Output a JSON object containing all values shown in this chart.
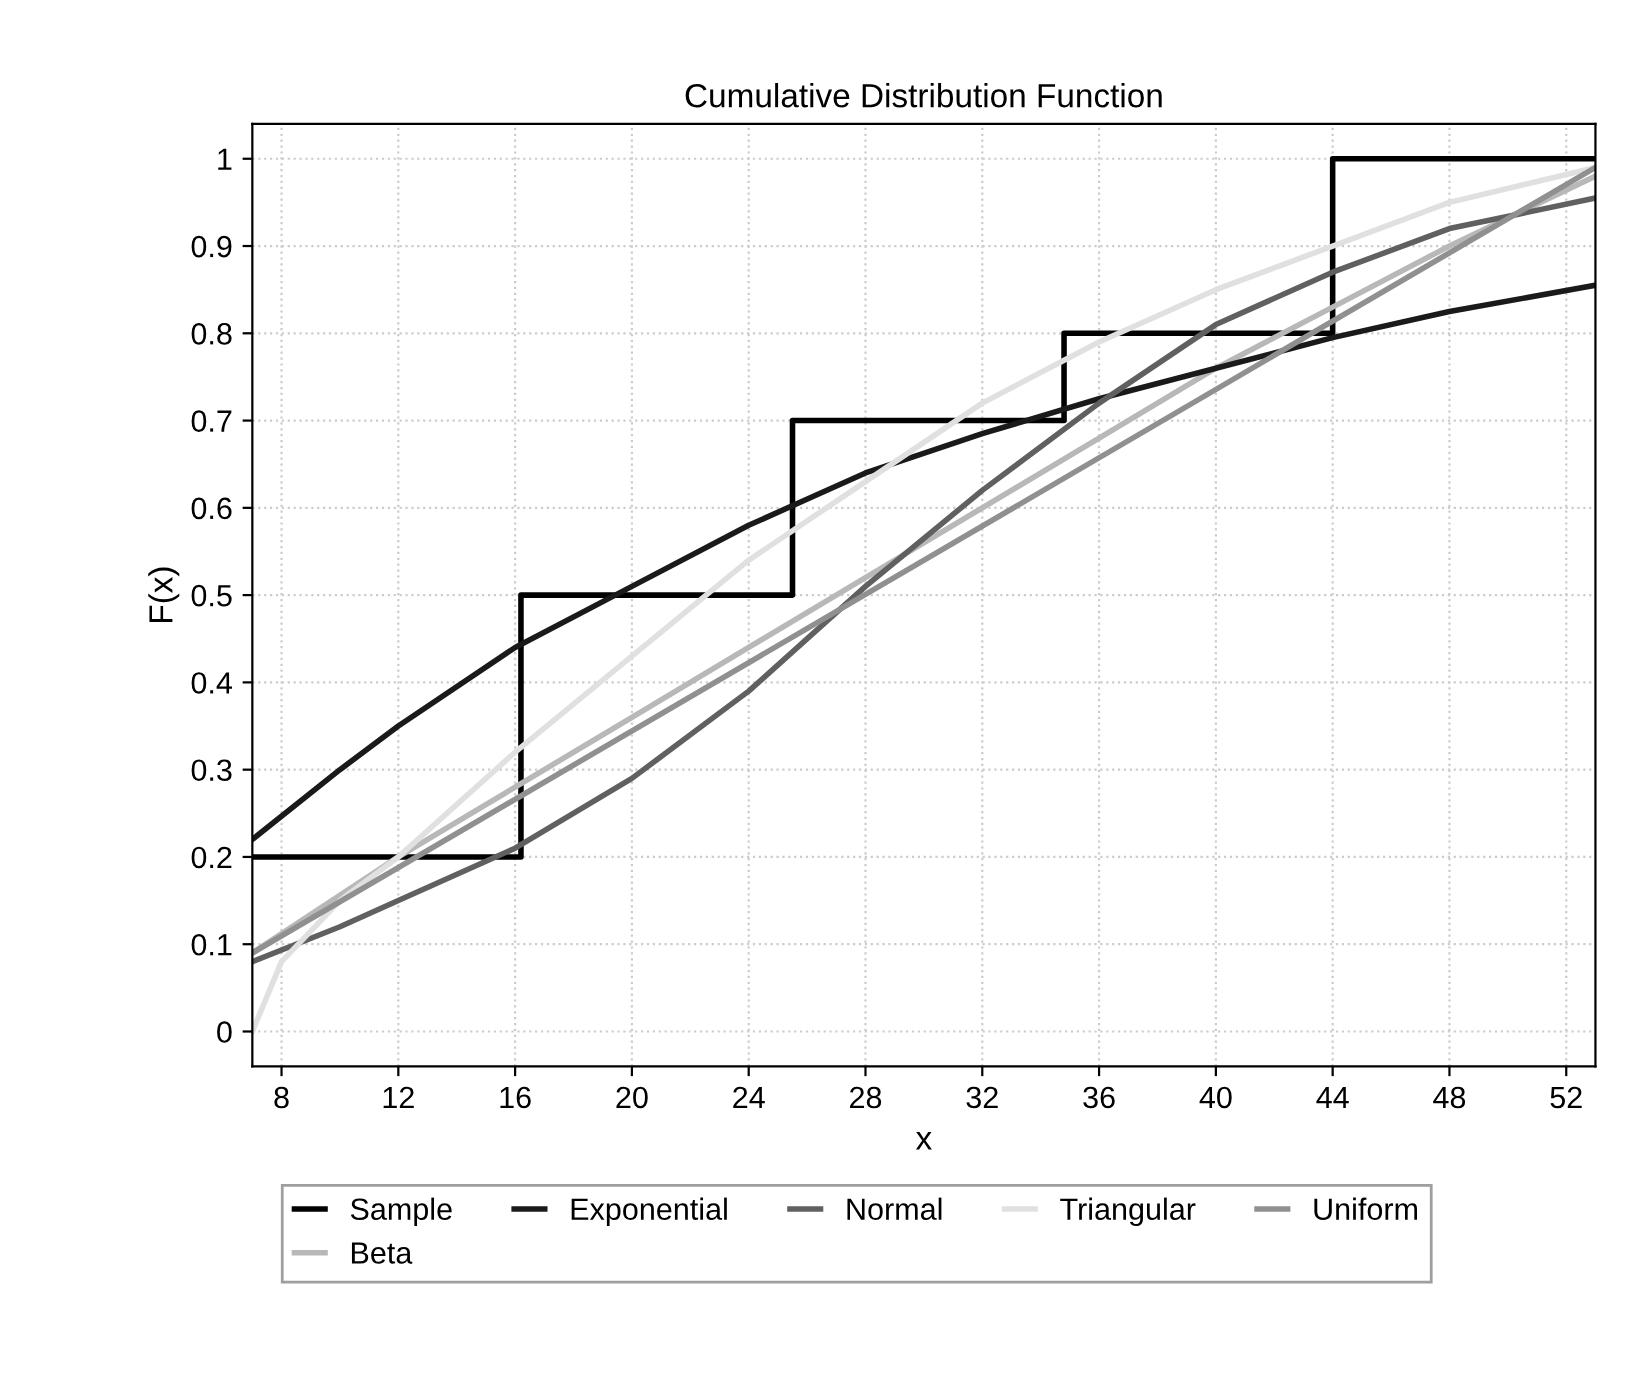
{
  "chart_data": {
    "type": "line",
    "title": "Cumulative Distribution Function",
    "xlabel": "x",
    "ylabel": "F(x)",
    "xlim": [
      7,
      53
    ],
    "xticks": [
      8,
      12,
      16,
      20,
      24,
      28,
      32,
      36,
      40,
      44,
      48,
      52
    ],
    "ylim": [
      -0.04,
      1.04
    ],
    "yticks": [
      0,
      0.1,
      0.2,
      0.3,
      0.4,
      0.5,
      0.6,
      0.7,
      0.8,
      0.9,
      1
    ],
    "grid": true,
    "legend": "bottom",
    "marker": "none",
    "line_style": "solid",
    "series": [
      {
        "name": "Sample",
        "type": "step",
        "color": "#000000",
        "x": [
          7,
          16.2,
          25.5,
          34.8,
          44,
          53
        ],
        "values": [
          0.2,
          0.5,
          0.7,
          0.8,
          1,
          1
        ]
      },
      {
        "name": "Beta",
        "color": "#b8b8b8",
        "x": [
          7,
          12,
          16,
          20,
          24,
          28,
          32,
          36,
          40,
          44,
          48,
          53
        ],
        "values": [
          0.09,
          0.2,
          0.28,
          0.36,
          0.44,
          0.52,
          0.6,
          0.68,
          0.76,
          0.83,
          0.9,
          0.98
        ]
      },
      {
        "name": "Exponential",
        "color": "#1a1a1a",
        "x": [
          7,
          10,
          12,
          16,
          20,
          24,
          28,
          32,
          36,
          40,
          44,
          48,
          53
        ],
        "values": [
          0.22,
          0.3,
          0.35,
          0.44,
          0.51,
          0.58,
          0.64,
          0.685,
          0.725,
          0.76,
          0.795,
          0.825,
          0.855
        ]
      },
      {
        "name": "Normal",
        "color": "#606060",
        "x": [
          7,
          10,
          12,
          16,
          20,
          24,
          28,
          32,
          36,
          40,
          44,
          48,
          53
        ],
        "values": [
          0.08,
          0.12,
          0.15,
          0.21,
          0.29,
          0.39,
          0.51,
          0.62,
          0.72,
          0.81,
          0.87,
          0.92,
          0.955
        ]
      },
      {
        "name": "Triangular",
        "color": "#e0e0e0",
        "x": [
          7,
          8,
          10,
          12,
          16,
          20,
          24,
          28,
          32,
          36,
          40,
          44,
          48,
          53
        ],
        "values": [
          0,
          0.08,
          0.15,
          0.2,
          0.32,
          0.43,
          0.54,
          0.63,
          0.72,
          0.79,
          0.85,
          0.9,
          0.95,
          0.99
        ]
      },
      {
        "name": "Uniform",
        "color": "#909090",
        "x": [
          7,
          53
        ],
        "values": [
          0.09,
          0.99
        ]
      }
    ]
  }
}
